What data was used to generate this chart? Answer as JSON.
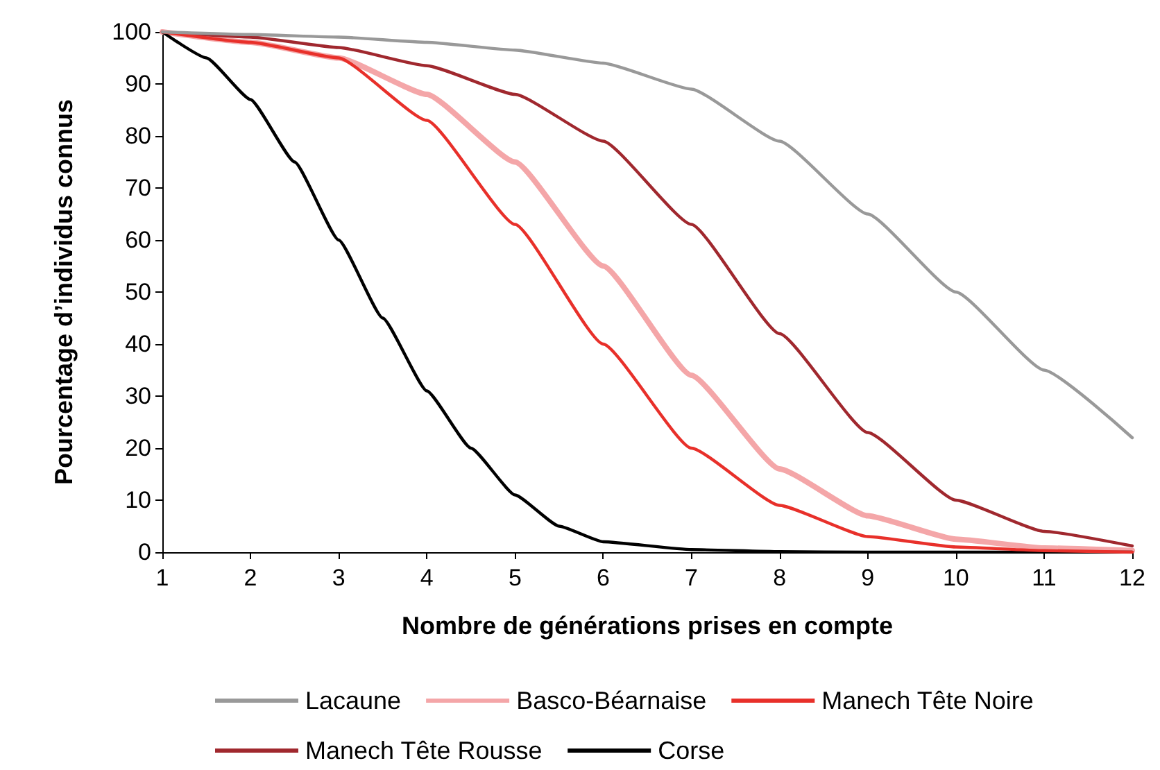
{
  "chart_data": {
    "type": "line",
    "xlabel": "Nombre de générations prises en compte",
    "ylabel": "Pourcentage d’individus connus",
    "x": [
      1,
      2,
      3,
      4,
      5,
      6,
      7,
      8,
      9,
      10,
      11,
      12
    ],
    "series": [
      {
        "name": "Lacaune",
        "color": "#999999",
        "values": [
          100,
          99.5,
          99,
          98,
          96.5,
          94,
          89,
          79,
          65,
          50,
          35,
          22
        ]
      },
      {
        "name": "Basco-Béarnaise",
        "color": "#f4a6a8",
        "values": [
          100,
          98,
          95,
          88,
          75,
          55,
          34,
          16,
          7,
          2.5,
          0.8,
          0.3
        ]
      },
      {
        "name": "Manech Tête Noire",
        "color": "#e8302a",
        "values": [
          100,
          98,
          95,
          83,
          63,
          40,
          20,
          9,
          3,
          1,
          0.3,
          0
        ]
      },
      {
        "name": "Manech Tête Rousse",
        "color": "#a0282e",
        "values": [
          100,
          99,
          97,
          93.5,
          88,
          79,
          63,
          42,
          23,
          10,
          4,
          1.2
        ]
      },
      {
        "name": "Corse",
        "color": "#000000",
        "x": [
          1,
          1.5,
          2,
          2.5,
          3,
          3.5,
          4,
          4.5,
          5,
          5.5,
          6,
          7,
          8,
          9,
          12
        ],
        "values": [
          100,
          95,
          87,
          75,
          60,
          45,
          31,
          20,
          11,
          5,
          2,
          0.5,
          0.1,
          0,
          0
        ]
      }
    ],
    "xlim": [
      1,
      12
    ],
    "xticks": [
      1,
      2,
      3,
      4,
      5,
      6,
      7,
      8,
      9,
      10,
      11,
      12
    ],
    "ylim": [
      0,
      100
    ],
    "yticks": [
      0,
      10,
      20,
      30,
      40,
      50,
      60,
      70,
      80,
      90,
      100
    ],
    "grid": false,
    "legend": "bottom",
    "marker": "none",
    "line_style": "solid"
  }
}
